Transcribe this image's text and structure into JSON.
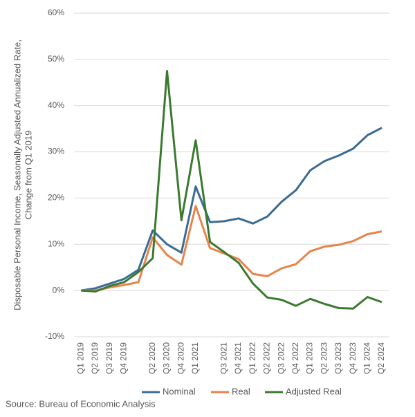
{
  "chart_data": {
    "type": "line",
    "y_axis_title": [
      "Disposable Personal Income, Seasonally Adjusted Annualized Rate,",
      "Change from Q1 2019"
    ],
    "categories": [
      "Q1 2019",
      "Q2 2019",
      "Q3 2019",
      "Q4 2019",
      null,
      "Q2 2020",
      "Q3 2020",
      "Q4 2020",
      "Q1 2021",
      null,
      "Q3 2021",
      "Q4 2021",
      "Q1 2022",
      "Q2 2022",
      "Q3 2022",
      "Q4 2022",
      "Q1 2023",
      "Q2 2023",
      "Q3 2023",
      "Q4 2023",
      "Q1 2024",
      "Q2 2024"
    ],
    "series": [
      {
        "name": "Nominal",
        "color": "#3a6b93",
        "values": [
          0,
          0.5,
          1.5,
          2.5,
          4.5,
          13,
          10,
          8.2,
          22.5,
          14.8,
          15,
          15.6,
          14.5,
          16,
          19.2,
          21.7,
          26,
          28,
          29.2,
          30.7,
          33.6,
          35.2
        ]
      },
      {
        "name": "Real",
        "color": "#e8834a",
        "values": [
          0,
          0,
          0.7,
          1.2,
          1.8,
          11.5,
          7.7,
          5.6,
          18.3,
          9.2,
          8,
          6.8,
          3.6,
          3.1,
          4.8,
          5.7,
          8.5,
          9.5,
          9.9,
          10.7,
          12.2,
          12.8
        ]
      },
      {
        "name": "Adjusted Real",
        "color": "#3a7a2e",
        "values": [
          0,
          -0.2,
          1,
          1.8,
          4,
          7,
          47.5,
          15.2,
          32.5,
          10.5,
          8.3,
          6,
          1.5,
          -1.5,
          -2,
          -3.3,
          -1.8,
          -2.9,
          -3.8,
          -3.9,
          -1.4,
          -2.5
        ]
      }
    ],
    "ylim": [
      -10,
      60
    ],
    "yticks": [
      {
        "value": -10,
        "label": "-10%"
      },
      {
        "value": 0,
        "label": "0%"
      },
      {
        "value": 10,
        "label": "10%"
      },
      {
        "value": 20,
        "label": "20%"
      },
      {
        "value": 30,
        "label": "30%"
      },
      {
        "value": 40,
        "label": "40%"
      },
      {
        "value": 50,
        "label": "50%"
      },
      {
        "value": 60,
        "label": "60%"
      }
    ],
    "grid": true,
    "legend_position": "bottom",
    "source": "Source: Bureau of Economic Analysis"
  }
}
